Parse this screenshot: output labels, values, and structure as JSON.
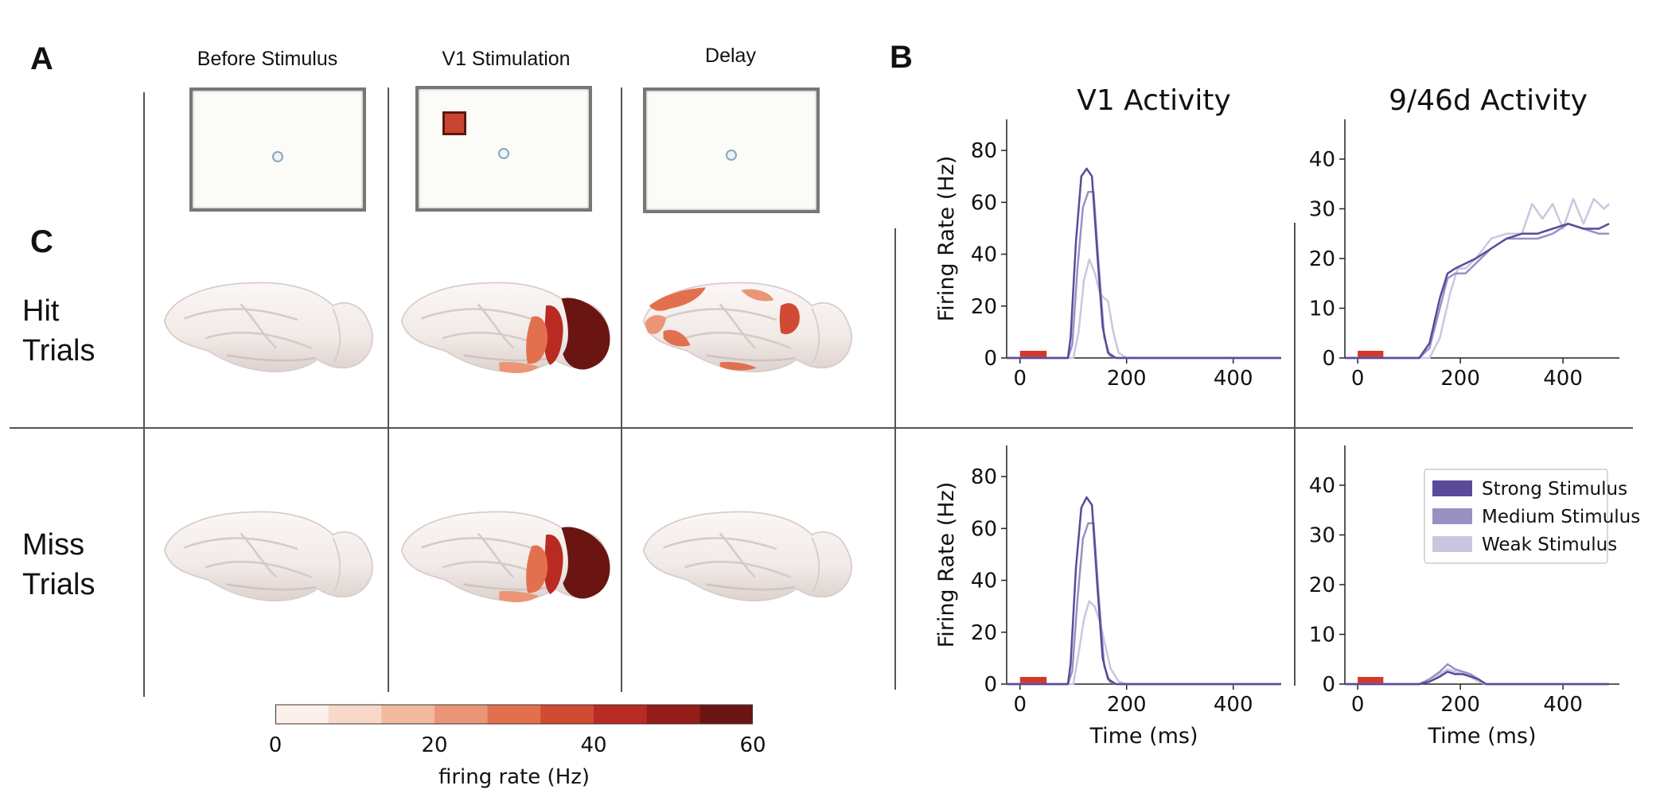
{
  "panels": {
    "a": "A",
    "b": "B",
    "c": "C"
  },
  "columns": {
    "before": "Before Stimulus",
    "v1": "V1 Stimulation",
    "delay": "Delay"
  },
  "rows": {
    "hit": [
      "Hit",
      "Trials"
    ],
    "miss": [
      "Miss",
      "Trials"
    ]
  },
  "colors": {
    "strong": "#5b4a9a",
    "medium": "#9a90c4",
    "weak": "#cbc6e0",
    "stim_bar": "#d2392b",
    "colormap": [
      "#fdf0ea",
      "#f8d8c9",
      "#f2b99f",
      "#ea9676",
      "#e2704f",
      "#d14a33",
      "#b92b22",
      "#941d19",
      "#6b1512"
    ]
  },
  "colorbar": {
    "ticks": [
      "0",
      "20",
      "40",
      "60"
    ],
    "label": "firing rate (Hz)"
  },
  "chart_data": [
    {
      "type": "line",
      "id": "v1-hit",
      "title": "V1 Activity",
      "xlabel": "",
      "ylabel": "Firing Rate (Hz)",
      "xlim": [
        -25,
        490
      ],
      "ylim": [
        0,
        92
      ],
      "xticks": [
        0,
        200,
        400
      ],
      "yticks": [
        0,
        20,
        40,
        60,
        80
      ],
      "stimulus_bar": [
        0,
        50
      ],
      "series": [
        {
          "name": "Strong Stimulus",
          "x": [
            -25,
            90,
            95,
            105,
            115,
            125,
            135,
            145,
            155,
            165,
            180,
            200,
            300,
            490
          ],
          "y": [
            0,
            0,
            8,
            45,
            70,
            73,
            70,
            40,
            12,
            2,
            0,
            0,
            0,
            0
          ]
        },
        {
          "name": "Medium Stimulus",
          "x": [
            -25,
            90,
            98,
            108,
            118,
            128,
            138,
            148,
            158,
            168,
            180,
            200,
            300,
            490
          ],
          "y": [
            0,
            0,
            5,
            35,
            58,
            64,
            64,
            35,
            8,
            1,
            0,
            0,
            0,
            0
          ]
        },
        {
          "name": "Weak Stimulus",
          "x": [
            -25,
            100,
            110,
            120,
            130,
            140,
            150,
            158,
            165,
            175,
            185,
            200,
            300,
            490
          ],
          "y": [
            0,
            0,
            10,
            30,
            38,
            33,
            25,
            23,
            22,
            10,
            2,
            0,
            0,
            0
          ]
        }
      ]
    },
    {
      "type": "line",
      "id": "pfc-hit",
      "title": "9/46d Activity",
      "xlabel": "",
      "ylabel": "",
      "xlim": [
        -25,
        510
      ],
      "ylim": [
        0,
        48
      ],
      "xticks": [
        0,
        200,
        400
      ],
      "yticks": [
        0,
        10,
        20,
        30,
        40
      ],
      "stimulus_bar": [
        0,
        50
      ],
      "series": [
        {
          "name": "Strong Stimulus",
          "x": [
            -25,
            120,
            140,
            160,
            175,
            190,
            210,
            230,
            260,
            290,
            320,
            350,
            380,
            410,
            440,
            470,
            490
          ],
          "y": [
            0,
            0,
            3,
            12,
            17,
            18,
            19,
            20,
            22,
            24,
            25,
            25,
            26,
            27,
            26,
            26,
            27
          ]
        },
        {
          "name": "Medium Stimulus",
          "x": [
            -25,
            120,
            140,
            160,
            175,
            190,
            210,
            230,
            260,
            290,
            320,
            350,
            380,
            410,
            440,
            470,
            490
          ],
          "y": [
            0,
            0,
            2,
            10,
            16,
            17,
            17,
            19,
            22,
            24,
            24,
            24,
            25,
            27,
            26,
            25,
            25
          ]
        },
        {
          "name": "Weak Stimulus",
          "x": [
            -25,
            140,
            160,
            180,
            195,
            210,
            230,
            260,
            290,
            320,
            340,
            360,
            380,
            400,
            420,
            440,
            460,
            480,
            490
          ],
          "y": [
            0,
            0,
            4,
            13,
            18,
            18,
            20,
            24,
            25,
            25,
            31,
            28,
            31,
            26,
            32,
            27,
            32,
            30,
            31
          ]
        }
      ]
    },
    {
      "type": "line",
      "id": "v1-miss",
      "title": "",
      "xlabel": "Time (ms)",
      "ylabel": "Firing Rate (Hz)",
      "xlim": [
        -25,
        490
      ],
      "ylim": [
        0,
        92
      ],
      "xticks": [
        0,
        200,
        400
      ],
      "yticks": [
        0,
        20,
        40,
        60,
        80
      ],
      "stimulus_bar": [
        0,
        50
      ],
      "series": [
        {
          "name": "Strong Stimulus",
          "x": [
            -25,
            90,
            95,
            105,
            115,
            125,
            135,
            145,
            155,
            165,
            180,
            200,
            300,
            490
          ],
          "y": [
            0,
            0,
            8,
            45,
            68,
            72,
            69,
            38,
            10,
            2,
            0,
            0,
            0,
            0
          ]
        },
        {
          "name": "Medium Stimulus",
          "x": [
            -25,
            90,
            98,
            108,
            118,
            128,
            138,
            148,
            158,
            168,
            180,
            200,
            300,
            490
          ],
          "y": [
            0,
            0,
            5,
            33,
            56,
            62,
            62,
            33,
            7,
            1,
            0,
            0,
            0,
            0
          ]
        },
        {
          "name": "Weak Stimulus",
          "x": [
            -25,
            100,
            110,
            120,
            130,
            140,
            150,
            160,
            170,
            185,
            200,
            300,
            490
          ],
          "y": [
            0,
            0,
            12,
            25,
            32,
            30,
            24,
            15,
            6,
            1,
            0,
            0,
            0
          ]
        }
      ]
    },
    {
      "type": "line",
      "id": "pfc-miss",
      "title": "",
      "xlabel": "Time (ms)",
      "ylabel": "",
      "xlim": [
        -25,
        510
      ],
      "ylim": [
        0,
        48
      ],
      "xticks": [
        0,
        200,
        400
      ],
      "yticks": [
        0,
        10,
        20,
        30,
        40
      ],
      "stimulus_bar": [
        0,
        50
      ],
      "legend": {
        "position": "top-right",
        "entries": [
          "Strong Stimulus",
          "Medium Stimulus",
          "Weak Stimulus"
        ]
      },
      "series": [
        {
          "name": "Strong Stimulus",
          "x": [
            -25,
            120,
            140,
            160,
            175,
            190,
            205,
            220,
            235,
            250,
            300,
            490
          ],
          "y": [
            0,
            0,
            0.5,
            1.5,
            2.5,
            2,
            2,
            1.5,
            1,
            0,
            0,
            0
          ]
        },
        {
          "name": "Medium Stimulus",
          "x": [
            -25,
            120,
            140,
            160,
            175,
            190,
            205,
            220,
            235,
            250,
            300,
            490
          ],
          "y": [
            0,
            0,
            1,
            2.5,
            4,
            3,
            2.5,
            2,
            1,
            0,
            0,
            0
          ]
        },
        {
          "name": "Weak Stimulus",
          "x": [
            -25,
            120,
            140,
            160,
            175,
            190,
            205,
            220,
            235,
            250,
            300,
            490
          ],
          "y": [
            0,
            0,
            1,
            2,
            3,
            2.5,
            2,
            1.5,
            0.5,
            0,
            0,
            0
          ]
        }
      ]
    }
  ]
}
